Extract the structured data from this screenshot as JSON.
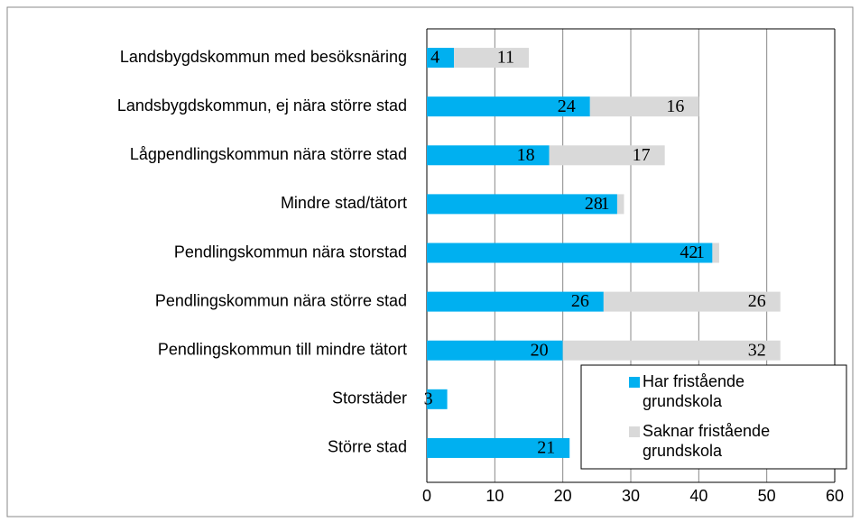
{
  "chart_data": {
    "type": "stacked-barh",
    "categories": [
      "Landsbygdskommun med besöksnäring",
      "Landsbygdskommun, ej nära större stad",
      "Lågpendlingskommun nära större stad",
      "Mindre stad/tätort",
      "Pendlingskommun nära storstad",
      "Pendlingskommun nära större stad",
      "Pendlingskommun till mindre tätort",
      "Storstäder",
      "Större stad"
    ],
    "series": [
      {
        "name": "Har fristående grundskola",
        "color": "#00b0f0",
        "values": [
          4,
          24,
          18,
          28,
          42,
          26,
          20,
          3,
          21
        ]
      },
      {
        "name": "Saknar fristående grundskola",
        "color": "#d9d9d9",
        "values": [
          11,
          16,
          17,
          1,
          1,
          26,
          32,
          null,
          null
        ]
      }
    ],
    "xlim": [
      0,
      60
    ],
    "xticks": [
      0,
      10,
      20,
      30,
      40,
      50,
      60
    ],
    "grid": true,
    "legend": "lower right"
  }
}
